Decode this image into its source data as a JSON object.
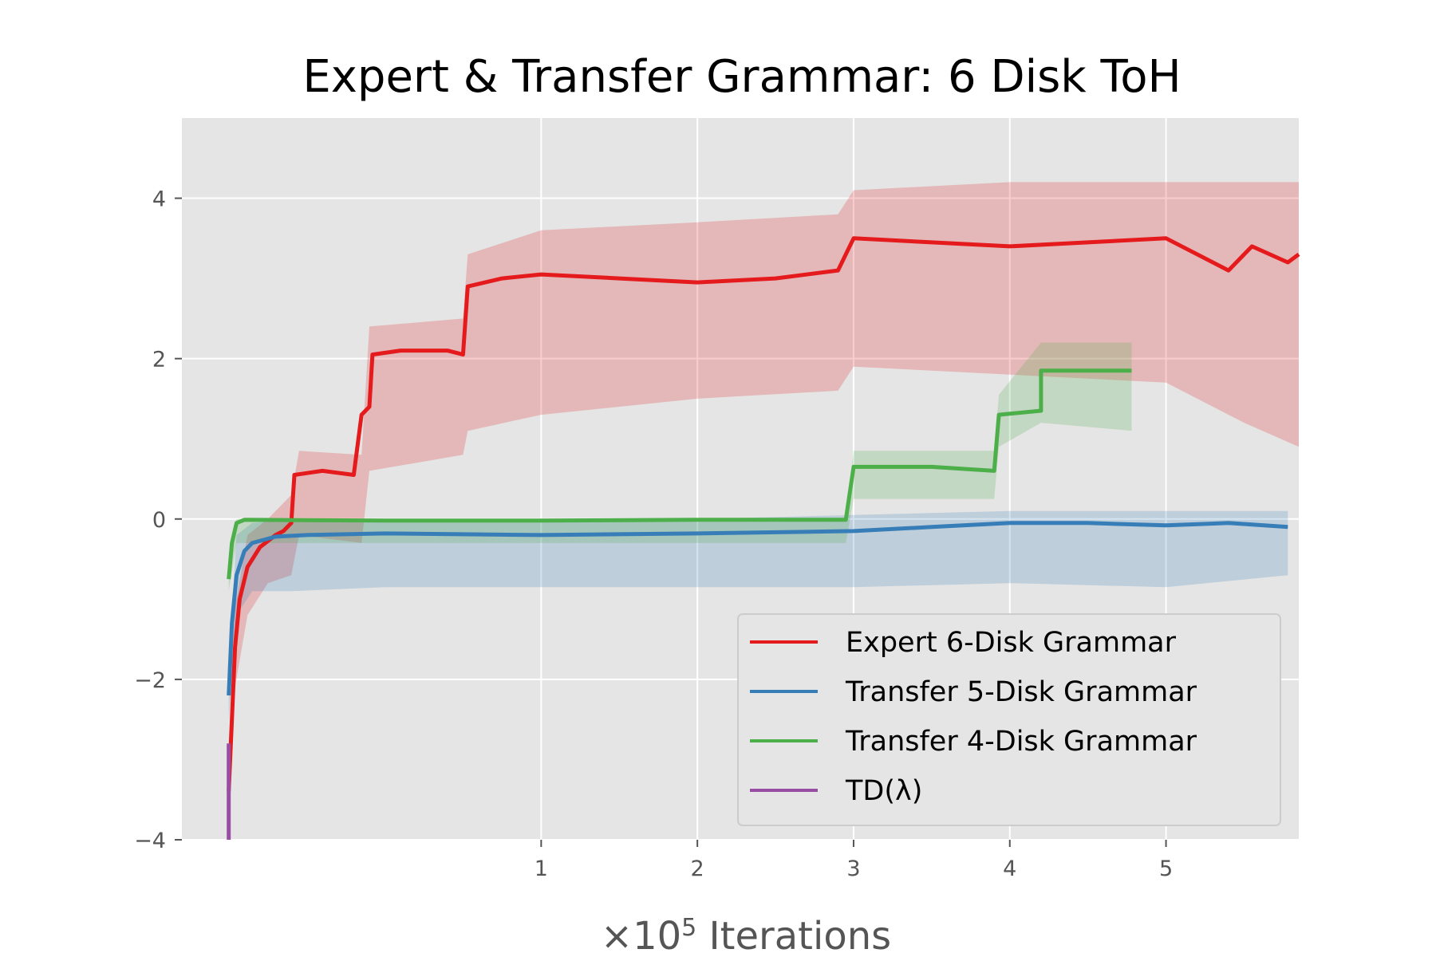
{
  "chart_data": {
    "type": "line",
    "title": "Expert & Transfer Grammar: 6 Disk ToH",
    "xlabel_prefix": "×10",
    "xlabel_exp": "5",
    "xlabel_suffix": " Iterations",
    "ylabel": "",
    "xlim": [
      -1.3,
      5.85
    ],
    "ylim": [
      -4,
      5
    ],
    "x_ticks": [
      1,
      2,
      3,
      4,
      5
    ],
    "y_ticks": [
      -4,
      -2,
      0,
      2,
      4
    ],
    "y_tick_labels": [
      "−4",
      "−2",
      "0",
      "2",
      "4"
    ],
    "grid": true,
    "legend_position": "lower-right",
    "series": [
      {
        "name": "Expert 6-Disk Grammar",
        "color": "#e41a1c",
        "points": [
          [
            -1.0,
            -3.4
          ],
          [
            -0.98,
            -2.5
          ],
          [
            -0.96,
            -1.6
          ],
          [
            -0.93,
            -1.0
          ],
          [
            -0.88,
            -0.6
          ],
          [
            -0.8,
            -0.35
          ],
          [
            -0.7,
            -0.2
          ],
          [
            -0.65,
            -0.15
          ],
          [
            -0.6,
            -0.05
          ],
          [
            -0.58,
            0.55
          ],
          [
            -0.4,
            0.6
          ],
          [
            -0.2,
            0.55
          ],
          [
            -0.15,
            1.3
          ],
          [
            -0.1,
            1.4
          ],
          [
            -0.08,
            2.05
          ],
          [
            0.1,
            2.1
          ],
          [
            0.4,
            2.1
          ],
          [
            0.5,
            2.05
          ],
          [
            0.53,
            2.9
          ],
          [
            0.75,
            3.0
          ],
          [
            1.0,
            3.05
          ],
          [
            1.5,
            3.0
          ],
          [
            2.0,
            2.95
          ],
          [
            2.5,
            3.0
          ],
          [
            2.9,
            3.1
          ],
          [
            3.0,
            3.5
          ],
          [
            3.5,
            3.45
          ],
          [
            4.0,
            3.4
          ],
          [
            4.5,
            3.45
          ],
          [
            5.0,
            3.5
          ],
          [
            5.4,
            3.1
          ],
          [
            5.55,
            3.4
          ],
          [
            5.78,
            3.2
          ],
          [
            5.85,
            3.3
          ]
        ],
        "band": [
          [
            -1.0,
            -3.9,
            -2.8
          ],
          [
            -0.96,
            -2.1,
            -1.1
          ],
          [
            -0.88,
            -1.2,
            -0.2
          ],
          [
            -0.75,
            -0.8,
            0.0
          ],
          [
            -0.6,
            -0.7,
            0.3
          ],
          [
            -0.55,
            -0.2,
            0.85
          ],
          [
            -0.15,
            -0.3,
            0.8
          ],
          [
            -0.1,
            0.6,
            2.4
          ],
          [
            0.5,
            0.8,
            2.5
          ],
          [
            0.53,
            1.1,
            3.3
          ],
          [
            1.0,
            1.3,
            3.6
          ],
          [
            2.0,
            1.5,
            3.7
          ],
          [
            2.9,
            1.6,
            3.8
          ],
          [
            3.0,
            1.9,
            4.1
          ],
          [
            4.0,
            1.8,
            4.2
          ],
          [
            5.0,
            1.7,
            4.2
          ],
          [
            5.5,
            1.2,
            4.2
          ],
          [
            5.85,
            0.9,
            4.2
          ]
        ]
      },
      {
        "name": "Transfer 5-Disk Grammar",
        "color": "#377eb8",
        "points": [
          [
            -1.0,
            -2.2
          ],
          [
            -0.98,
            -1.3
          ],
          [
            -0.95,
            -0.7
          ],
          [
            -0.9,
            -0.4
          ],
          [
            -0.85,
            -0.3
          ],
          [
            -0.7,
            -0.22
          ],
          [
            -0.5,
            -0.2
          ],
          [
            0.0,
            -0.18
          ],
          [
            1.0,
            -0.2
          ],
          [
            2.0,
            -0.18
          ],
          [
            3.0,
            -0.15
          ],
          [
            3.5,
            -0.1
          ],
          [
            4.0,
            -0.05
          ],
          [
            4.5,
            -0.05
          ],
          [
            5.0,
            -0.08
          ],
          [
            5.4,
            -0.05
          ],
          [
            5.78,
            -0.1
          ]
        ],
        "band": [
          [
            -1.0,
            -2.5,
            -1.8
          ],
          [
            -0.95,
            -1.2,
            -0.2
          ],
          [
            -0.85,
            -0.9,
            -0.05
          ],
          [
            -0.6,
            -0.9,
            0.0
          ],
          [
            0.0,
            -0.85,
            0.0
          ],
          [
            1.0,
            -0.85,
            0.0
          ],
          [
            2.0,
            -0.85,
            0.0
          ],
          [
            3.0,
            -0.85,
            0.05
          ],
          [
            4.0,
            -0.8,
            0.1
          ],
          [
            5.0,
            -0.85,
            0.1
          ],
          [
            5.78,
            -0.7,
            0.1
          ]
        ]
      },
      {
        "name": "Transfer 4-Disk Grammar",
        "color": "#4daf4a",
        "points": [
          [
            -1.0,
            -0.75
          ],
          [
            -0.98,
            -0.3
          ],
          [
            -0.95,
            -0.05
          ],
          [
            -0.9,
            -0.01
          ],
          [
            0.0,
            -0.02
          ],
          [
            1.0,
            -0.02
          ],
          [
            2.0,
            -0.01
          ],
          [
            2.95,
            -0.01
          ],
          [
            3.0,
            0.65
          ],
          [
            3.5,
            0.65
          ],
          [
            3.9,
            0.6
          ],
          [
            3.93,
            1.3
          ],
          [
            4.2,
            1.35
          ],
          [
            4.2,
            1.85
          ],
          [
            4.5,
            1.85
          ],
          [
            4.78,
            1.85
          ]
        ],
        "band": [
          [
            -1.0,
            -0.9,
            -0.6
          ],
          [
            -0.95,
            -0.3,
            0.0
          ],
          [
            0.0,
            -0.3,
            0.0
          ],
          [
            2.95,
            -0.3,
            0.0
          ],
          [
            3.0,
            0.25,
            0.85
          ],
          [
            3.9,
            0.25,
            0.85
          ],
          [
            3.93,
            0.9,
            1.55
          ],
          [
            4.2,
            1.2,
            2.2
          ],
          [
            4.78,
            1.1,
            2.2
          ]
        ]
      },
      {
        "name": "TD(λ)",
        "color": "#984ea3",
        "points": [
          [
            -1.0,
            -4.0
          ],
          [
            -1.0,
            -2.8
          ]
        ],
        "band": []
      }
    ]
  },
  "legend": {
    "items": [
      {
        "label": "Expert 6-Disk Grammar",
        "color": "#e41a1c"
      },
      {
        "label": "Transfer 5-Disk Grammar",
        "color": "#377eb8"
      },
      {
        "label": "Transfer 4-Disk Grammar",
        "color": "#4daf4a"
      },
      {
        "label": "TD(λ)",
        "color": "#984ea3"
      }
    ]
  },
  "style": {
    "plot_background": "#e5e5e5",
    "grid_color": "#ffffff"
  }
}
